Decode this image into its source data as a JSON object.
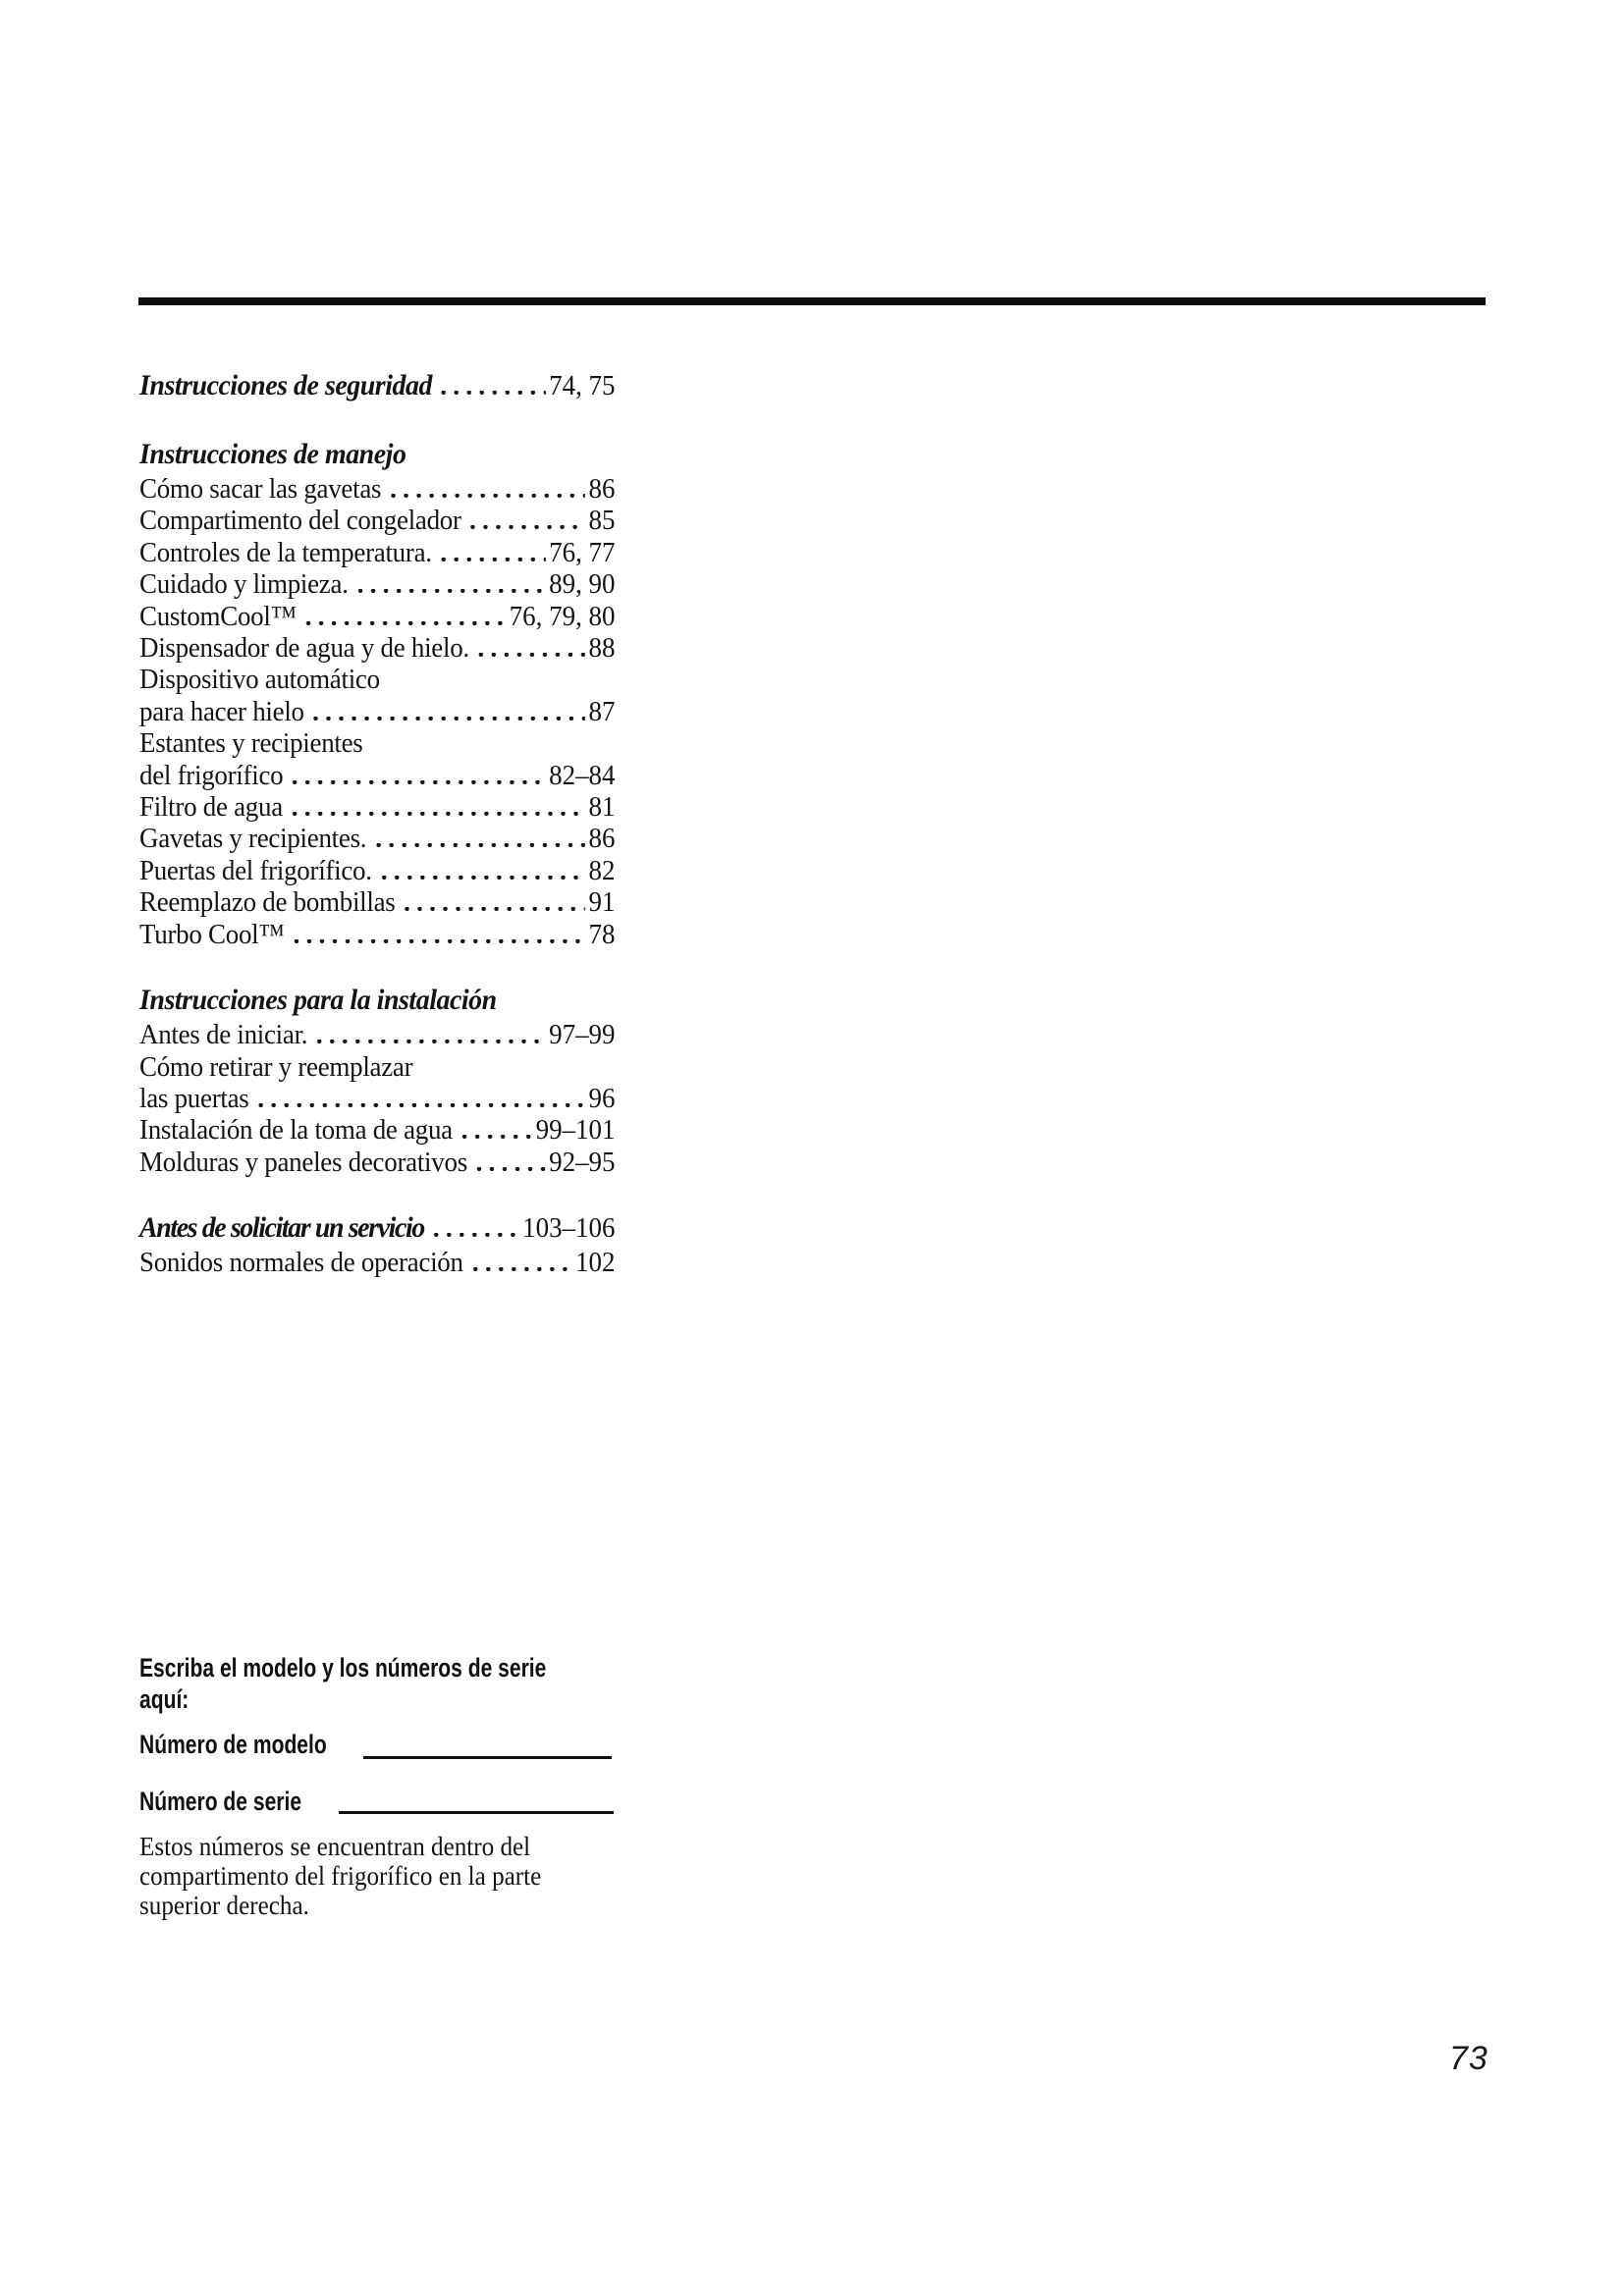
{
  "colors": {
    "background": "#ffffff",
    "ink": "#141414",
    "rule": "#0c0c0c"
  },
  "page": {
    "number": "73"
  },
  "toc": {
    "sections": [
      {
        "heading": "Instrucciones de seguridad",
        "heading_page": "74, 75",
        "entries": []
      },
      {
        "heading": "Instrucciones de manejo",
        "heading_page": "",
        "entries": [
          {
            "label": "Cómo sacar las gavetas",
            "page": "86"
          },
          {
            "label": "Compartimento del congelador",
            "page": "85"
          },
          {
            "label": "Controles de la temperatura.",
            "page": "76, 77"
          },
          {
            "label": "Cuidado y limpieza.",
            "page": "89, 90"
          },
          {
            "label": "CustomCool™",
            "page": "76, 79, 80"
          },
          {
            "label": "Dispensador de agua y de hielo.",
            "page": "88"
          },
          {
            "label": "Dispositivo automático",
            "page": ""
          },
          {
            "label": "para hacer hielo",
            "page": "87"
          },
          {
            "label": "Estantes y recipientes",
            "page": ""
          },
          {
            "label": "del frigorífico",
            "page": "82–84"
          },
          {
            "label": "Filtro de agua",
            "page": "81"
          },
          {
            "label": "Gavetas y recipientes.",
            "page": "86"
          },
          {
            "label": "Puertas del frigorífico.",
            "page": "82"
          },
          {
            "label": "Reemplazo de bombillas",
            "page": "91"
          },
          {
            "label": "Turbo Cool™",
            "page": "78"
          }
        ]
      },
      {
        "heading": "Instrucciones para la instalación",
        "heading_page": "",
        "entries": [
          {
            "label": "Antes de iniciar.",
            "page": "97–99"
          },
          {
            "label": "Cómo retirar y reemplazar",
            "page": ""
          },
          {
            "label": "las puertas",
            "page": "96"
          },
          {
            "label": "Instalación de la toma de agua",
            "page": "99–101"
          },
          {
            "label": "Molduras y paneles decorativos",
            "page": "92–95"
          }
        ]
      },
      {
        "heading": "Antes de solicitar un servicio",
        "heading_page": "103–106",
        "entries": [
          {
            "label": "Sonidos normales de operación",
            "page": "102"
          }
        ]
      }
    ]
  },
  "form": {
    "title_lines": [
      "Escriba el modelo y los números de serie",
      "aquí:"
    ],
    "model_label": "Número de modelo",
    "serial_label": "Número de serie",
    "note_lines": [
      "Estos números se encuentran dentro del",
      "compartimento del frigorífico en la parte",
      "superior derecha."
    ]
  }
}
